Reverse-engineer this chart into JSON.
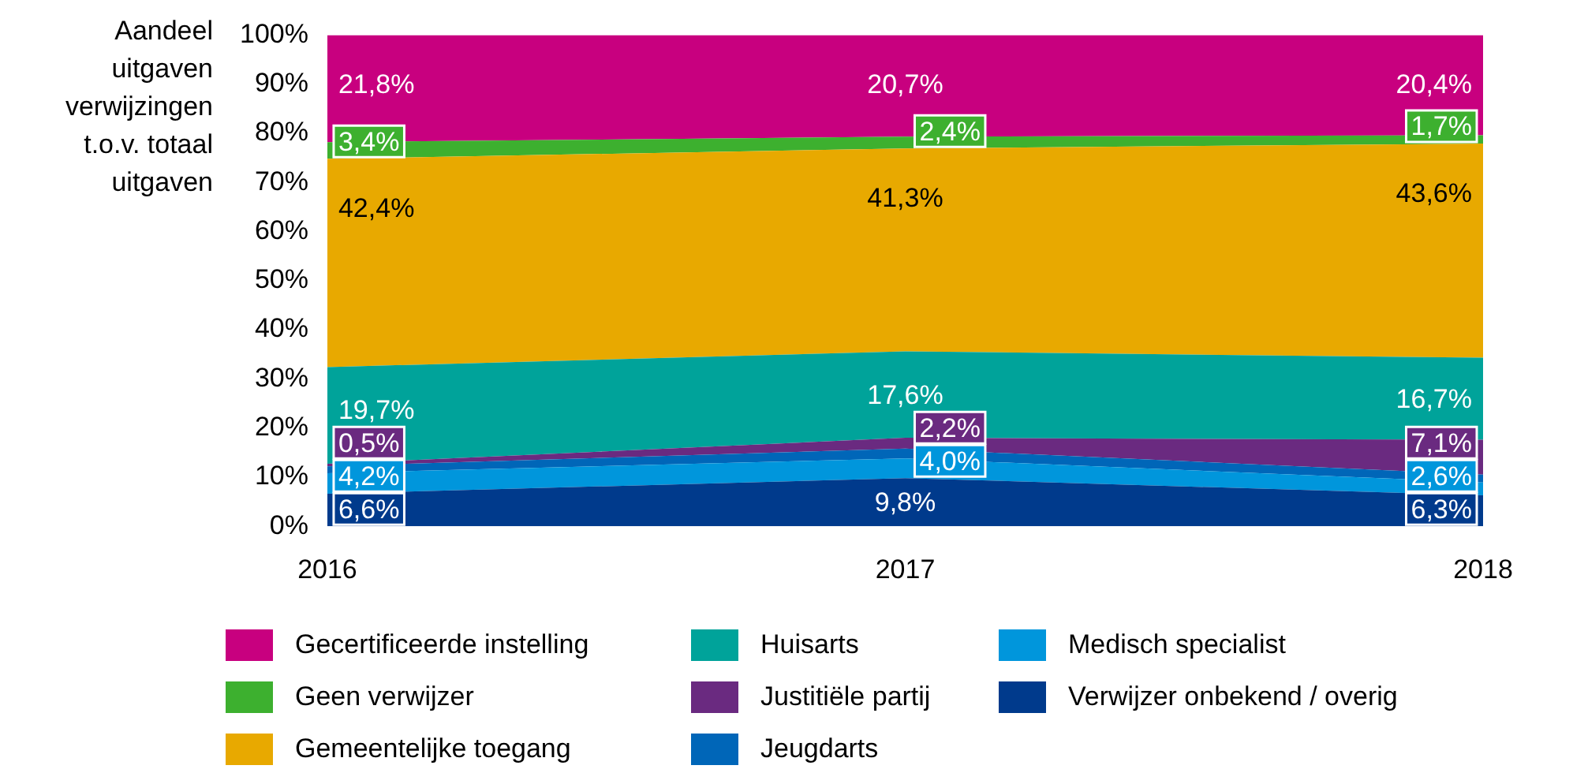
{
  "chart_data": {
    "type": "area",
    "stacked": true,
    "ylabel": "Aandeel uitgaven verwijzingen t.o.v. totaal uitgaven",
    "x": [
      2016,
      2017,
      2018
    ],
    "xlim": [
      2016,
      2018
    ],
    "xticks": [
      2016,
      2017,
      2018
    ],
    "ylim": [
      0,
      100
    ],
    "yticks": [
      {
        "value": 0,
        "label": "0%"
      },
      {
        "value": 10,
        "label": "10%"
      },
      {
        "value": 20,
        "label": "20%"
      },
      {
        "value": 30,
        "label": "30%"
      },
      {
        "value": 40,
        "label": "40%"
      },
      {
        "value": 50,
        "label": "50%"
      },
      {
        "value": 60,
        "label": "60%"
      },
      {
        "value": 70,
        "label": "70%"
      },
      {
        "value": 80,
        "label": "80%"
      },
      {
        "value": 90,
        "label": "90%"
      },
      {
        "value": 100,
        "label": "100%"
      }
    ],
    "grid": false,
    "legend": "bottom",
    "series": [
      {
        "name": "Verwijzer onbekend / overig",
        "color": "#003a8c",
        "values": [
          6.6,
          9.8,
          6.3
        ],
        "value_labels": [
          "6,6%",
          "9,8%",
          "6,3%"
        ]
      },
      {
        "name": "Medisch specialist",
        "color": "#0096dc",
        "values": [
          4.2,
          4.0,
          2.6
        ],
        "value_labels": [
          "4,2%",
          "4,0%",
          "2,6%"
        ]
      },
      {
        "name": "Jeugdarts",
        "color": "#0066b8",
        "values": [
          1.4,
          2.0,
          1.6
        ],
        "value_labels": [
          null,
          null,
          null
        ]
      },
      {
        "name": "Justitiële partij",
        "color": "#6a2a80",
        "values": [
          0.5,
          2.2,
          7.1
        ],
        "value_labels": [
          "0,5%",
          "2,2%",
          "7,1%"
        ]
      },
      {
        "name": "Huisarts",
        "color": "#00a39a",
        "values": [
          19.7,
          17.6,
          16.7
        ],
        "value_labels": [
          "19,7%",
          "17,6%",
          "16,7%"
        ]
      },
      {
        "name": "Gemeentelijke toegang",
        "color": "#e8a900",
        "values": [
          42.4,
          41.3,
          43.6
        ],
        "value_labels": [
          "42,4%",
          "41,3%",
          "43,6%"
        ]
      },
      {
        "name": "Geen verwijzer",
        "color": "#3db02f",
        "values": [
          3.4,
          2.4,
          1.7
        ],
        "value_labels": [
          "3,4%",
          "2,4%",
          "1,7%"
        ]
      },
      {
        "name": "Gecertificeerde instelling",
        "color": "#c8007f",
        "values": [
          21.8,
          20.7,
          20.4
        ],
        "value_labels": [
          "21,8%",
          "20,7%",
          "20,4%"
        ]
      }
    ]
  }
}
